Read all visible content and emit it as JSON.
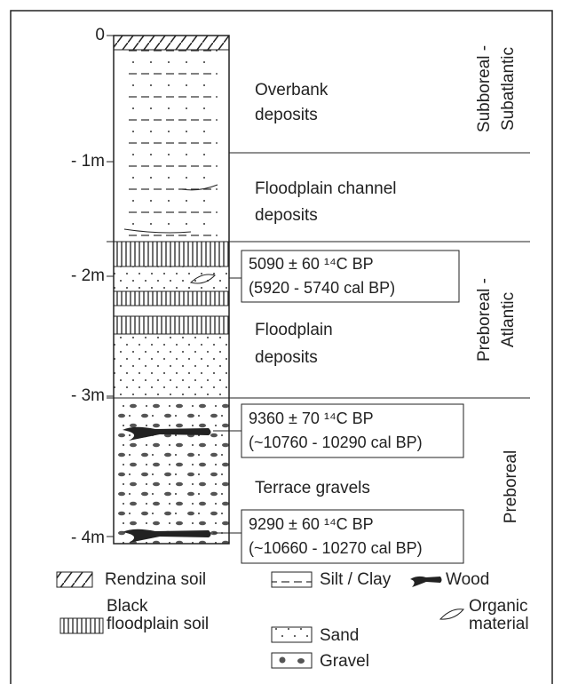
{
  "depths": [
    "0",
    "- 1m",
    "- 2m",
    "- 3m",
    "- 4m"
  ],
  "units": [
    {
      "lines": [
        "Overbank",
        "deposits"
      ]
    },
    {
      "lines": [
        "Floodplain channel",
        "deposits"
      ]
    },
    {
      "lines": [
        "Floodplain",
        "deposits"
      ]
    },
    {
      "lines": [
        "Terrace gravels"
      ]
    }
  ],
  "periods": [
    {
      "lines": [
        "Subboreal -",
        "Subatlantic"
      ]
    },
    {
      "lines": [
        "Preboreal -",
        "Atlantic"
      ]
    },
    {
      "lines": [
        "Preboreal"
      ]
    }
  ],
  "dates": [
    {
      "lines": [
        "5090 ± 60 ¹⁴C BP",
        "(5920 - 5740 cal BP)"
      ]
    },
    {
      "lines": [
        "9360 ± 70 ¹⁴C BP",
        "(~10760 - 10290 cal BP)"
      ]
    },
    {
      "lines": [
        "9290 ± 60 ¹⁴C BP",
        "(~10660 - 10270 cal BP)"
      ]
    }
  ],
  "legend": [
    {
      "lines": [
        "Rendzina soil"
      ]
    },
    {
      "lines": [
        "Black",
        "floodplain soil"
      ]
    },
    {
      "lines": [
        "Silt / Clay"
      ]
    },
    {
      "lines": [
        "Sand"
      ]
    },
    {
      "lines": [
        "Gravel"
      ]
    },
    {
      "lines": [
        "Wood"
      ]
    },
    {
      "lines": [
        "Organic",
        "material"
      ]
    }
  ]
}
